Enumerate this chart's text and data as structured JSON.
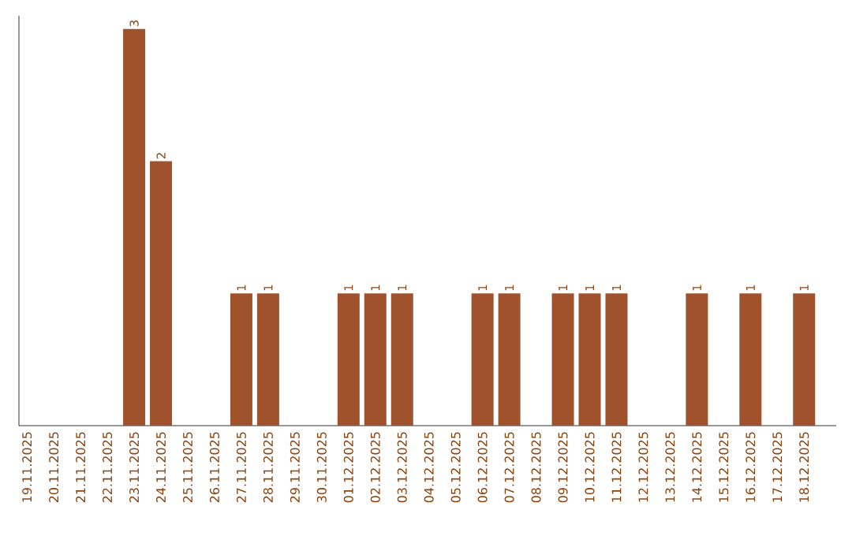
{
  "chart_data": {
    "type": "bar",
    "categories": [
      "19.11.2025",
      "20.11.2025",
      "21.11.2025",
      "22.11.2025",
      "23.11.2025",
      "24.11.2025",
      "25.11.2025",
      "26.11.2025",
      "27.11.2025",
      "28.11.2025",
      "29.11.2025",
      "30.11.2025",
      "01.12.2025",
      "02.12.2025",
      "03.12.2025",
      "04.12.2025",
      "05.12.2025",
      "06.12.2025",
      "07.12.2025",
      "08.12.2025",
      "09.12.2025",
      "10.12.2025",
      "11.12.2025",
      "12.12.2025",
      "13.12.2025",
      "14.12.2025",
      "15.12.2025",
      "16.12.2025",
      "17.12.2025",
      "18.12.2025"
    ],
    "values": [
      0,
      0,
      0,
      0,
      3,
      2,
      0,
      0,
      1,
      1,
      0,
      0,
      1,
      1,
      1,
      0,
      0,
      1,
      1,
      0,
      1,
      1,
      1,
      0,
      0,
      1,
      0,
      1,
      0,
      1
    ],
    "value_labels": [
      null,
      null,
      null,
      null,
      "3",
      "2",
      null,
      null,
      "1",
      "1",
      null,
      null,
      "1",
      "1",
      "1",
      null,
      null,
      "1",
      "1",
      null,
      "1",
      "1",
      "1",
      null,
      null,
      "1",
      null,
      "1",
      null,
      "1"
    ],
    "color": "#a0522d",
    "ylim": [
      0,
      3.1
    ],
    "tick_labels": "x"
  }
}
